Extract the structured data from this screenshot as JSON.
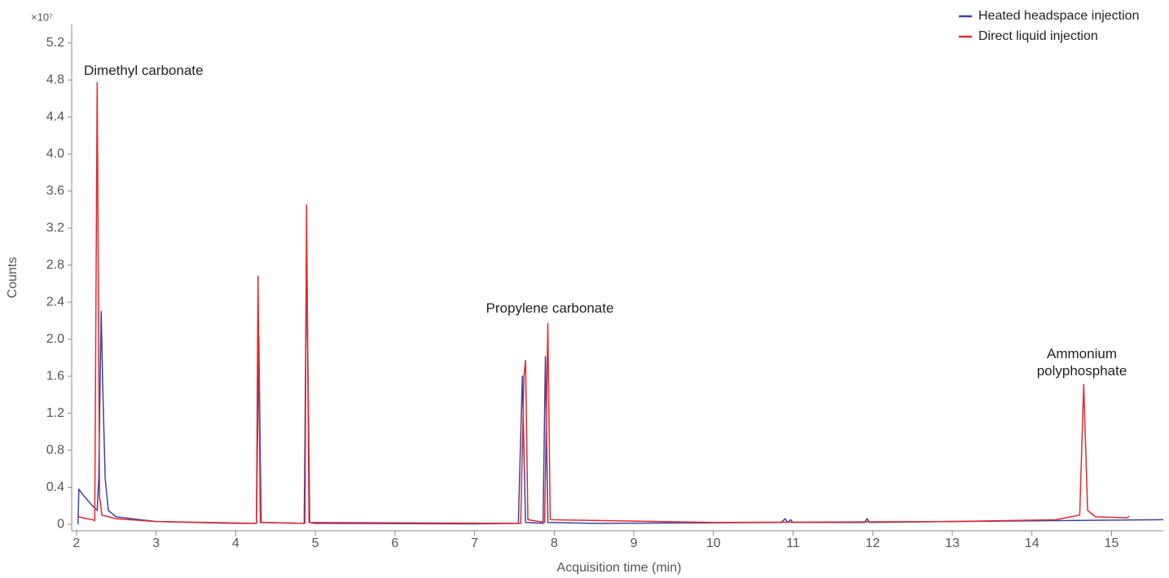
{
  "chart_data": {
    "type": "line",
    "axis_multiplier": "×10⁷",
    "xlabel": "Acquisition time (min)",
    "ylabel": "Counts",
    "xlim": [
      1.94,
      15.65
    ],
    "ylim": [
      -0.07,
      5.4
    ],
    "xticks": [
      2,
      3,
      4,
      5,
      6,
      7,
      8,
      9,
      10,
      11,
      12,
      13,
      14,
      15
    ],
    "yticks": [
      0,
      0.4,
      0.8,
      1.2,
      1.6,
      {
        "value": 2,
        "label": "2.0"
      },
      2.4,
      2.8,
      3.2,
      3.6,
      {
        "value": 4,
        "label": "4.0"
      },
      4.4,
      4.8,
      5.2
    ],
    "legend": "top-right",
    "annotations": [
      "Dimethyl carbonate",
      "Propylene carbonate",
      "Ammonium polyphosphate"
    ],
    "series": [
      {
        "name": "Heated headspace injection",
        "color": "#3a44a6",
        "x": [
          2.02,
          2.03,
          2.1,
          2.2,
          2.26,
          2.28,
          2.31,
          2.33,
          2.36,
          2.4,
          2.5,
          2.8,
          3.0,
          4.0,
          4.26,
          4.29,
          4.32,
          4.86,
          4.89,
          4.93,
          5.0,
          7.0,
          7.55,
          7.6,
          7.64,
          7.86,
          7.89,
          7.92,
          8.5,
          10.85,
          10.9,
          10.93,
          10.97,
          11.0,
          11.9,
          11.93,
          11.96,
          13.0,
          15.65
        ],
        "values": [
          0,
          0.38,
          0.3,
          0.2,
          0.15,
          0.5,
          2.3,
          1.5,
          0.5,
          0.15,
          0.08,
          0.05,
          0.03,
          0.01,
          0.01,
          2.02,
          0.02,
          0.01,
          2.98,
          0.02,
          0.01,
          0.005,
          0.01,
          1.6,
          0.02,
          0.01,
          1.81,
          0.02,
          0.01,
          0.02,
          0.06,
          0.02,
          0.05,
          0.02,
          0.02,
          0.06,
          0.02,
          0.03,
          0.05
        ]
      },
      {
        "name": "Direct liquid injection",
        "color": "#e8262c",
        "x": [
          2.02,
          2.2,
          2.23,
          2.26,
          2.29,
          2.32,
          2.5,
          3.0,
          4.26,
          4.28,
          4.31,
          4.87,
          4.89,
          4.92,
          7.58,
          7.62,
          7.64,
          7.67,
          7.88,
          7.92,
          7.95,
          10.0,
          13.0,
          14.3,
          14.6,
          14.65,
          14.7,
          14.8,
          15.2,
          15.22
        ],
        "values": [
          0.08,
          0.05,
          0.04,
          4.77,
          0.3,
          0.1,
          0.06,
          0.03,
          0.01,
          2.68,
          0.02,
          0.01,
          3.45,
          0.02,
          0.01,
          1.6,
          1.77,
          0.05,
          0.02,
          2.17,
          0.05,
          0.02,
          0.03,
          0.05,
          0.1,
          1.51,
          0.15,
          0.08,
          0.07,
          0.09
        ]
      }
    ]
  }
}
